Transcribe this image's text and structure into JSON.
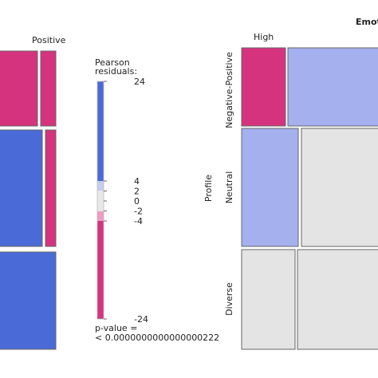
{
  "chart_data": [
    {
      "type": "mosaic",
      "column_headers": [
        "Positive"
      ],
      "cells": [
        {
          "row": 1,
          "col": 1,
          "residual": -24,
          "fill": "#d6337f"
        },
        {
          "row": 1,
          "col": 2,
          "residual": -24,
          "fill": "#d6337f"
        },
        {
          "row": 2,
          "col": 1,
          "residual": 24,
          "fill": "#4a6ad8"
        },
        {
          "row": 2,
          "col": 2,
          "residual": -24,
          "fill": "#d6337f"
        },
        {
          "row": 3,
          "col": 1,
          "residual": 24,
          "fill": "#4a6ad8"
        }
      ]
    },
    {
      "type": "mosaic",
      "title": "Emot",
      "row_variable": "Profile",
      "column_headers": [
        "High"
      ],
      "row_labels": [
        "Negative-Positive",
        "Neutral",
        "Diverse"
      ],
      "cells": [
        {
          "row": "Negative-Positive",
          "col": 1,
          "residual": -24,
          "fill": "#d6337f"
        },
        {
          "row": "Negative-Positive",
          "col": 2,
          "residual": 4,
          "fill": "#a5b0ef"
        },
        {
          "row": "Neutral",
          "col": 1,
          "residual": 4,
          "fill": "#a5b0ef"
        },
        {
          "row": "Neutral",
          "col": 2,
          "residual": 0,
          "fill": "#e4e4e4"
        },
        {
          "row": "Diverse",
          "col": 1,
          "residual": 0,
          "fill": "#e4e4e4"
        },
        {
          "row": "Diverse",
          "col": 2,
          "residual": 0,
          "fill": "#e4e4e4"
        }
      ]
    }
  ],
  "legend": {
    "title_line1": "Pearson",
    "title_line2": "residuals:",
    "ticks": [
      "24",
      "4",
      "2",
      "0",
      "-2",
      "-4",
      "-24"
    ],
    "tick_values": [
      24,
      4,
      2,
      0,
      -2,
      -4,
      -24
    ],
    "colors": {
      "strong_positive": "#4a6ad8",
      "weak_positive": "#c3cdee",
      "neutral": "#e8e8e8",
      "weak_negative": "#ee9cc4",
      "strong_negative": "#d6337f"
    },
    "pvalue_line1": "p-value =",
    "pvalue_line2": "< 0.0000000000000000222"
  }
}
